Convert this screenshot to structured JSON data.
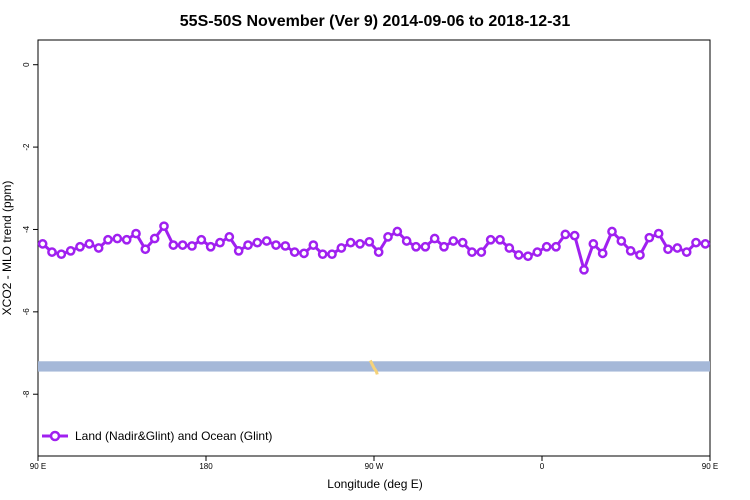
{
  "chart_data": {
    "type": "line",
    "title": "55S-50S November (Ver 9)   2014-09-06 to 2018-12-31",
    "xlabel": "Longitude (deg E)",
    "ylabel": "XCO2 - MLO trend (ppm)",
    "xlim": [
      90,
      450
    ],
    "ylim": [
      -9.5,
      0.6
    ],
    "x_tick_labels": [
      "90 E",
      "180",
      "90 W",
      "0",
      "90 E",
      "180"
    ],
    "y_tick_labels": [
      "0",
      "-2",
      "-4",
      "-6",
      "-8"
    ],
    "y_ticks": [
      0,
      -2,
      -4,
      -6,
      -8
    ],
    "legend": {
      "position": "bottom-left"
    },
    "colors": {
      "series": "#a020f0",
      "land_band": "#a5b8d8",
      "land_highlight": "#f5d27a"
    },
    "series": [
      {
        "name": "Land (Nadir&Glint) and Ocean (Glint)",
        "x": [
          92.5,
          97.5,
          102.5,
          107.5,
          112.5,
          117.5,
          122.5,
          127.5,
          132.5,
          137.5,
          142.5,
          147.5,
          152.5,
          157.5,
          162.5,
          167.5,
          172.5,
          177.5,
          182.5,
          187.5,
          192.5,
          197.5,
          202.5,
          207.5,
          212.5,
          217.5,
          222.5,
          227.5,
          232.5,
          237.5,
          242.5,
          247.5,
          252.5,
          257.5,
          262.5,
          267.5,
          272.5,
          277.5,
          282.5,
          287.5,
          292.5,
          297.5,
          302.5,
          307.5,
          312.5,
          317.5,
          322.5,
          327.5,
          332.5,
          337.5,
          342.5,
          347.5,
          352.5,
          357.5,
          362.5,
          367.5,
          372.5,
          377.5,
          382.5,
          387.5,
          392.5,
          397.5,
          402.5,
          407.5,
          412.5,
          417.5,
          422.5,
          427.5,
          432.5,
          437.5,
          442.5,
          447.5
        ],
        "y": [
          -4.35,
          -4.55,
          -4.6,
          -4.52,
          -4.42,
          -4.35,
          -4.45,
          -4.25,
          -4.22,
          -4.25,
          -4.1,
          -4.48,
          -4.22,
          -3.92,
          -4.38,
          -4.38,
          -4.4,
          -4.25,
          -4.42,
          -4.32,
          -4.18,
          -4.52,
          -4.38,
          -4.32,
          -4.28,
          -4.38,
          -4.4,
          -4.55,
          -4.58,
          -4.38,
          -4.6,
          -4.6,
          -4.45,
          -4.32,
          -4.35,
          -4.3,
          -4.55,
          -4.18,
          -4.05,
          -4.28,
          -4.42,
          -4.42,
          -4.22,
          -4.42,
          -4.28,
          -4.32,
          -4.55,
          -4.55,
          -4.25,
          -4.25,
          -4.45,
          -4.62,
          -4.65,
          -4.55,
          -4.42,
          -4.42,
          -4.12,
          -4.15,
          -4.98,
          -4.35,
          -4.58,
          -4.05,
          -4.28,
          -4.52,
          -4.62,
          -4.2,
          -4.1,
          -4.48,
          -4.45,
          -4.55,
          -4.32,
          -4.35
        ]
      }
    ]
  }
}
